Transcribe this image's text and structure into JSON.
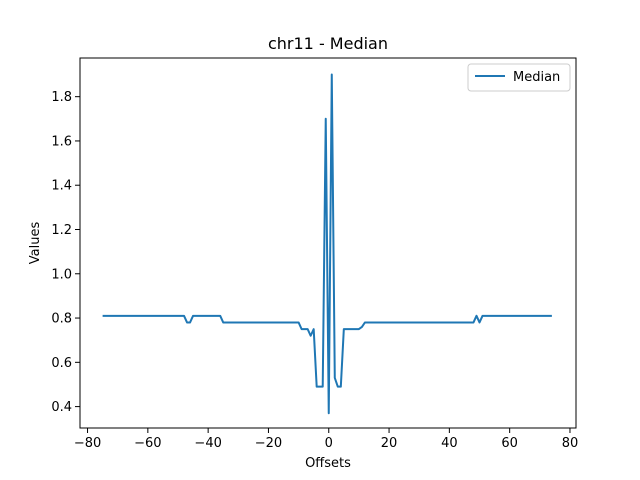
{
  "chart_data": {
    "type": "line",
    "title": "chr11 - Median",
    "xlabel": "Offsets",
    "ylabel": "Values",
    "xlim": [
      -82.5,
      82.0
    ],
    "ylim": [
      0.3033,
      1.9747
    ],
    "xticks": [
      -80,
      -60,
      -40,
      -20,
      0,
      20,
      40,
      60,
      80
    ],
    "xtick_labels": [
      "−80",
      "−60",
      "−40",
      "−20",
      "0",
      "20",
      "40",
      "60",
      "80"
    ],
    "yticks": [
      0.4,
      0.6,
      0.8,
      1.0,
      1.2,
      1.4,
      1.6,
      1.8
    ],
    "ytick_labels": [
      "0.4",
      "0.6",
      "0.8",
      "1.0",
      "1.2",
      "1.4",
      "1.6",
      "1.8"
    ],
    "grid": false,
    "legend_position": "top-right",
    "series": [
      {
        "name": "Median",
        "color": "#1f77b4",
        "x": [
          -75,
          -48,
          -47,
          -46,
          -45,
          -36,
          -35,
          -10,
          -9,
          -7,
          -6,
          -5,
          -4,
          -3,
          -2,
          -1,
          0,
          1,
          2,
          3,
          4,
          5,
          10,
          11,
          12,
          48,
          49,
          50,
          51,
          74
        ],
        "y": [
          0.81,
          0.81,
          0.78,
          0.78,
          0.81,
          0.81,
          0.78,
          0.78,
          0.75,
          0.75,
          0.72,
          0.75,
          0.49,
          0.49,
          0.49,
          1.7,
          0.37,
          1.9,
          0.53,
          0.49,
          0.49,
          0.75,
          0.75,
          0.76,
          0.78,
          0.78,
          0.81,
          0.78,
          0.81,
          0.81
        ]
      }
    ]
  }
}
